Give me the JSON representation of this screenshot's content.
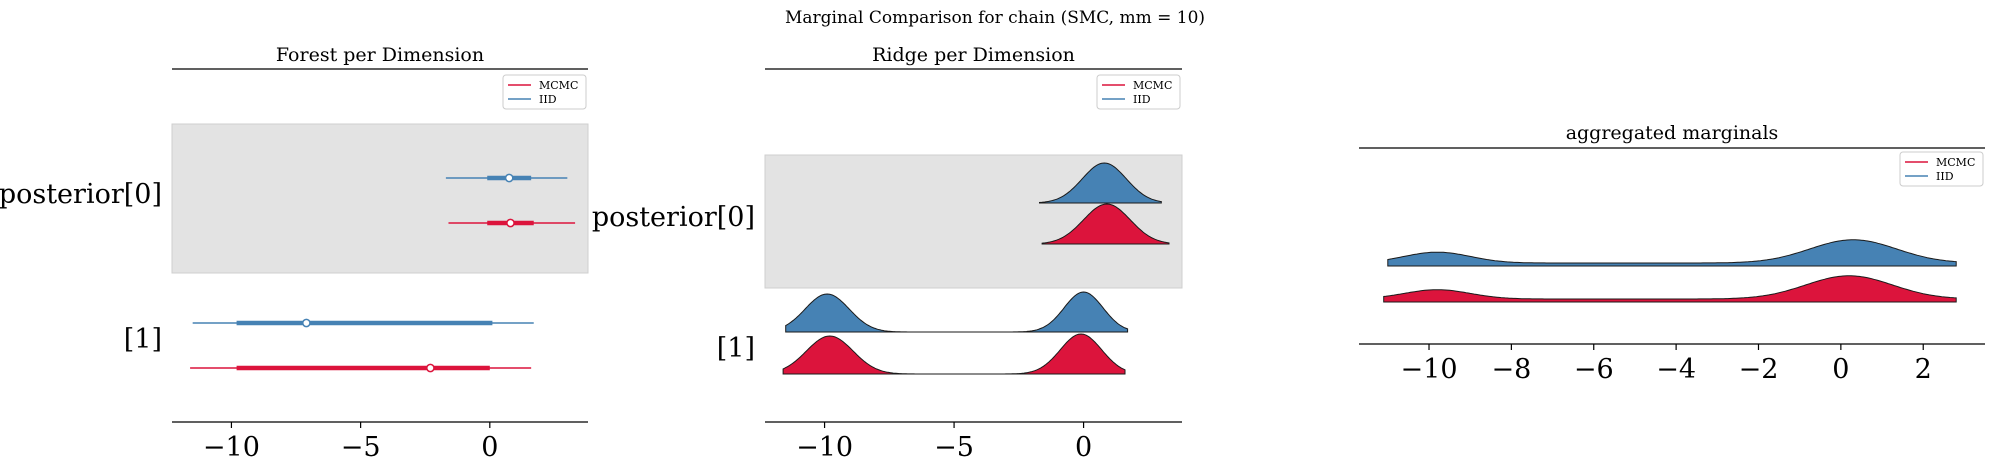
{
  "figure": {
    "suptitle": "Marginal Comparison for chain (SMC, mm = 10)"
  },
  "colors": {
    "mcmc": "#dc143c",
    "iid": "#4682b4",
    "band": "#e3e3e3",
    "axis": "#000000"
  },
  "legend": {
    "labels": [
      "MCMC",
      "IID"
    ],
    "placement": "top-right"
  },
  "chart_data": [
    {
      "type": "forest",
      "title": "Forest per Dimension",
      "xlim": [
        -12.3,
        3.8
      ],
      "xticks": [
        -10,
        -5,
        0
      ],
      "xtick_labels": [
        "−10",
        "−5",
        "0"
      ],
      "ylabels": [
        "posterior[0]",
        "[1]"
      ],
      "shaded_rows": [
        "posterior[0]"
      ],
      "series": [
        {
          "name": "IID",
          "rows": [
            {
              "dim": "posterior[0]",
              "low": -1.7,
              "q25": -0.1,
              "median": 0.75,
              "q75": 1.6,
              "high": 3.0
            },
            {
              "dim": "[1]",
              "low": -11.5,
              "q25": -9.8,
              "median": -7.1,
              "q75": 0.1,
              "high": 1.7
            }
          ]
        },
        {
          "name": "MCMC",
          "rows": [
            {
              "dim": "posterior[0]",
              "low": -1.6,
              "q25": -0.1,
              "median": 0.8,
              "q75": 1.7,
              "high": 3.3
            },
            {
              "dim": "[1]",
              "low": -11.6,
              "q25": -9.8,
              "median": -2.3,
              "q75": 0.0,
              "high": 1.6
            }
          ]
        }
      ]
    },
    {
      "type": "ridge",
      "title": "Ridge per Dimension",
      "xlim": [
        -12.3,
        3.8
      ],
      "xticks": [
        -10,
        -5,
        0
      ],
      "xtick_labels": [
        "−10",
        "−5",
        "0"
      ],
      "ylabels": [
        "posterior[0]",
        "[1]"
      ],
      "shaded_rows": [
        "posterior[0]"
      ],
      "series": [
        {
          "name": "IID",
          "rows": [
            {
              "dim": "posterior[0]",
              "range": [
                -1.7,
                3.0
              ],
              "peaks": [
                {
                  "mu": 0.8,
                  "sigma": 0.85,
                  "w": 1.0
                }
              ]
            },
            {
              "dim": "[1]",
              "range": [
                -11.5,
                1.7
              ],
              "peaks": [
                {
                  "mu": -9.9,
                  "sigma": 0.85,
                  "w": 0.95
                },
                {
                  "mu": 0.0,
                  "sigma": 0.75,
                  "w": 1.0
                }
              ]
            }
          ]
        },
        {
          "name": "MCMC",
          "rows": [
            {
              "dim": "posterior[0]",
              "range": [
                -1.6,
                3.3
              ],
              "peaks": [
                {
                  "mu": 0.9,
                  "sigma": 0.9,
                  "w": 1.0
                }
              ]
            },
            {
              "dim": "[1]",
              "range": [
                -11.6,
                1.6
              ],
              "peaks": [
                {
                  "mu": -9.8,
                  "sigma": 0.9,
                  "w": 0.95
                },
                {
                  "mu": -0.1,
                  "sigma": 0.8,
                  "w": 1.0
                }
              ]
            }
          ]
        }
      ]
    },
    {
      "type": "area",
      "title": "aggregated marginals",
      "xlim": [
        -11.7,
        3.5
      ],
      "xticks": [
        -10,
        -8,
        -6,
        -4,
        -2,
        0,
        2
      ],
      "xtick_labels": [
        "−10",
        "−8",
        "−6",
        "−4",
        "−2",
        "0",
        "2"
      ],
      "series": [
        {
          "name": "IID",
          "range": [
            -11.0,
            2.8
          ],
          "peaks": [
            {
              "mu": -9.8,
              "sigma": 0.8,
              "w": 0.35
            },
            {
              "mu": 0.3,
              "sigma": 1.05,
              "w": 0.75
            }
          ]
        },
        {
          "name": "MCMC",
          "range": [
            -11.1,
            2.8
          ],
          "peaks": [
            {
              "mu": -9.8,
              "sigma": 0.8,
              "w": 0.3
            },
            {
              "mu": 0.2,
              "sigma": 1.05,
              "w": 0.75
            }
          ]
        }
      ]
    }
  ]
}
